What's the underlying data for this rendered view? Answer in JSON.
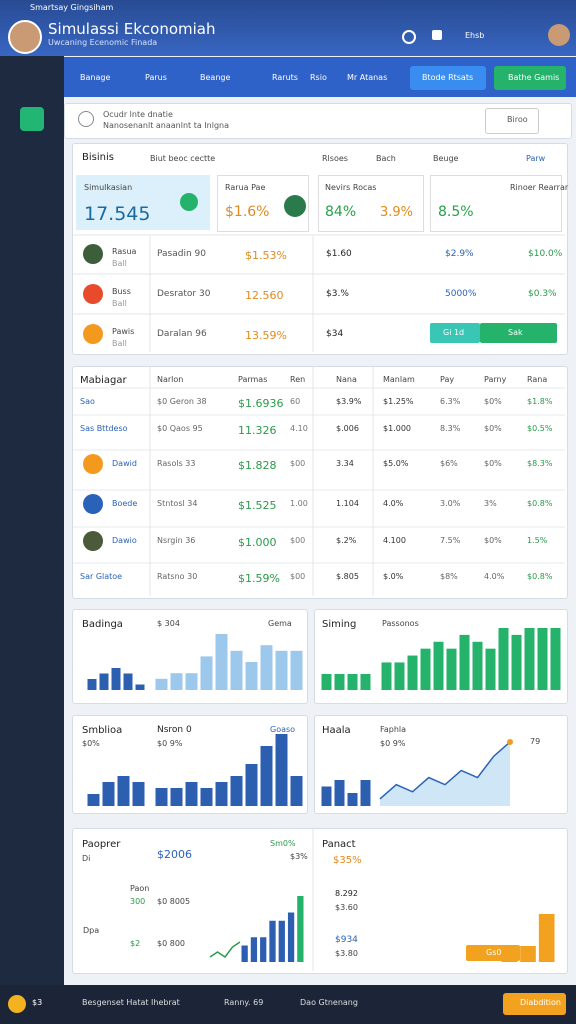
{
  "header": {
    "top": "Smartsay Gingsiham",
    "title": "Simulassi Ekconomiah",
    "subtitle": "Uwcaning Ecenomic Finada",
    "user": "Ehsb"
  },
  "nav": {
    "tabs": [
      "Banage",
      "Parus",
      "Beange",
      "Raruts",
      "Rsio",
      "Mr Atanas"
    ],
    "buttons": [
      "Btode Rtsats",
      "Bathe Gamis"
    ]
  },
  "search": {
    "title": "Ocudr lnte dnatie",
    "subtitle": "Nanosenanlt anaanlnt ta Inlgna",
    "button": "Biroo"
  },
  "panel1": {
    "tabs": [
      "Bisinis",
      "Biut beoc cectte",
      "Rlsoes",
      "Bach",
      "Beuge",
      "Parw"
    ],
    "cards": [
      {
        "label": "Simulkasian",
        "value": "17.545"
      },
      {
        "label": "Rarua Pae",
        "value": "$1.6%"
      },
      {
        "label": "Nevirs Rocas",
        "value": "84%",
        "value2": "3.9%"
      },
      {
        "label": "Rinoer Rearrar",
        "value": "8.5%"
      }
    ],
    "rows": [
      {
        "name": "Rasua",
        "sub": "Ball",
        "cells": [
          "Pasadin 90",
          "$1.53%",
          "$1.60",
          "$2.9%",
          "$10.0%"
        ]
      },
      {
        "name": "Buss",
        "sub": "Ball",
        "cells": [
          "Desrator 30",
          "12.560",
          "$3.%",
          "5000%",
          "$0.3%"
        ]
      },
      {
        "name": "Pawis",
        "sub": "Ball",
        "cells": [
          "Daralan 96",
          "13.59%",
          "$34"
        ]
      }
    ],
    "buttons": [
      "Gi 1d",
      "Sak"
    ]
  },
  "table": {
    "header": [
      "Mabiagar",
      "Narlon",
      "Parmas",
      "Ren",
      "Nana",
      "Manlam",
      "Pay",
      "Parny",
      "Rana"
    ],
    "rows": [
      [
        "Sao",
        "$0 Geron 38",
        "$1.6936",
        "60",
        "$3.9%",
        "$1.25%",
        "6.3%",
        "$0%",
        "$1.8%"
      ],
      [
        "Sas Bttdeso",
        "$0 Qaos 95",
        "11.326",
        "4.10",
        "$.006",
        "$1.000",
        "8.3%",
        "$0%",
        "$0.5%"
      ],
      [
        "Dawid",
        "Rasols 33",
        "$1.828",
        "$00",
        "3.34",
        "$5.0%",
        "$6%",
        "$0%",
        "$8.3%"
      ],
      [
        "Boede",
        "Stntosl 34",
        "$1.525",
        "1.00",
        "1.104",
        "4.0%",
        "3.0%",
        "3%",
        "$0.8%"
      ],
      [
        "Dawio",
        "Nsrgin 36",
        "$1.000",
        "$00",
        "$.2%",
        "4.100",
        "7.5%",
        "$0%",
        "1.5%"
      ],
      [
        "Sar Glatoe",
        "Ratsno 30",
        "$1.59%",
        "$00",
        "$.805",
        "$.0%",
        "$8%",
        "4.0%",
        "$0.8%"
      ]
    ]
  },
  "charts": [
    {
      "title": "Badinga",
      "sub": "$ 304",
      "right": "Gema",
      "bars_a": [
        2,
        3,
        4,
        3,
        1
      ],
      "bars_b": [
        2,
        3,
        3,
        6,
        10,
        7,
        5,
        8,
        7,
        7
      ]
    },
    {
      "title": "Siming",
      "right": "Passonos",
      "bars_a": [
        3,
        3,
        3,
        3
      ],
      "bars_b": [
        4,
        4,
        5,
        6,
        7,
        6,
        8,
        7,
        6,
        9,
        8,
        9,
        9,
        9
      ]
    },
    {
      "title": "Smblioa",
      "sub": "$0%",
      "title2": "Nsron 0",
      "sub2": "$0 9%",
      "right": "Goaso",
      "bars_a": [
        2,
        4,
        5,
        4
      ],
      "bars_b": [
        3,
        3,
        4,
        3,
        4,
        5,
        7,
        10,
        12,
        5
      ]
    },
    {
      "title": "Haala",
      "title2": "Faphla",
      "sub2": "$0 9%",
      "end": "79",
      "bars_a": [
        3,
        4,
        2,
        4
      ],
      "line": [
        1,
        3,
        2,
        4,
        3,
        5,
        4,
        7,
        9
      ]
    },
    {
      "title": "Paoprer",
      "sub": "Di",
      "title2": "$2006",
      "right": "Sm0%",
      "sub2": "$3%",
      "k1": "Paon",
      "v1": "300",
      "k2": "$0 8005",
      "k3": "Dpa",
      "v3": "$2",
      "k4": "$0 800",
      "bars_a": [
        2,
        3,
        3,
        5,
        5,
        6,
        8
      ],
      "line": [
        1,
        2,
        1,
        3,
        4
      ]
    },
    {
      "title": "Panact",
      "sub": "$35%",
      "k1": "8.292",
      "v1": "$3.60",
      "k2": "$934",
      "v2": "$3.80",
      "button": "Gs0s",
      "bars_a": [
        1,
        1,
        3
      ]
    }
  ],
  "footer": {
    "badge": "$3",
    "items": [
      "Besgenset Hatat Ihebrat",
      "Ranny. 69",
      "Dao Gtnenang"
    ],
    "button": "Diabdition"
  }
}
